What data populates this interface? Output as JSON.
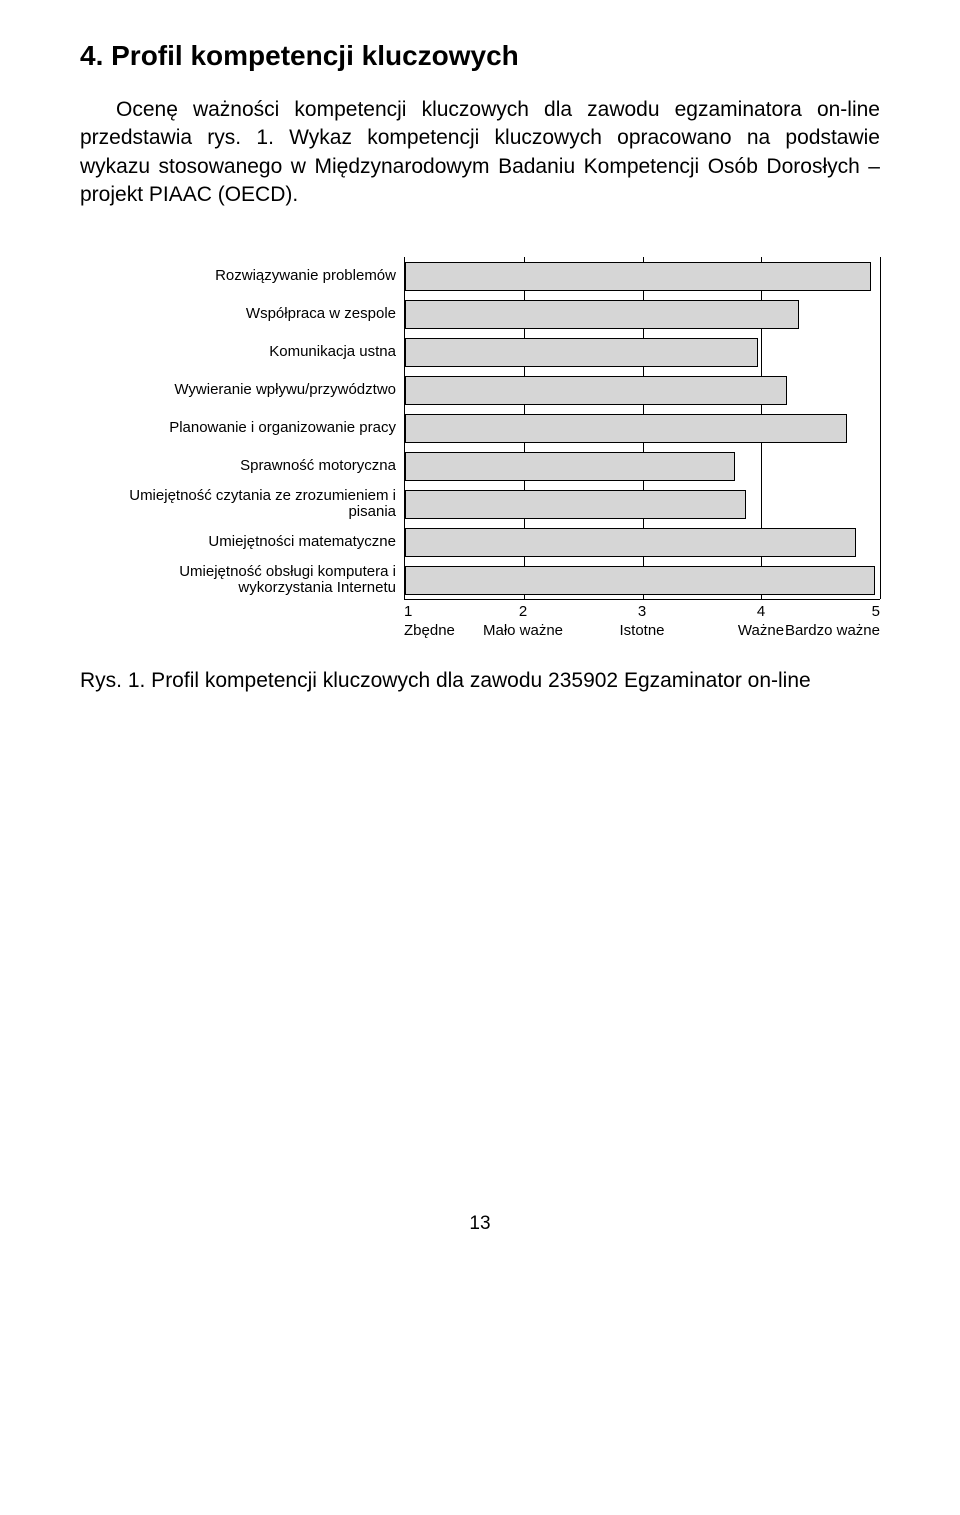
{
  "heading": "4. Profil kompetencji kluczowych",
  "intro": "Ocenę ważności kompetencji kluczowych dla zawodu egzaminatora on-line przedstawia rys. 1. Wykaz kompetencji kluczowych opracowano na podstawie wykazu stosowanego w Międzynarodowym Badaniu Kompetencji Osób Dorosłych – projekt PIAAC (OECD).",
  "chart": {
    "type": "bar-horizontal",
    "xlim": [
      1,
      5
    ],
    "xticks": [
      {
        "value": 1,
        "num": "1",
        "label": "Zbędne"
      },
      {
        "value": 2,
        "num": "2",
        "label": "Mało ważne"
      },
      {
        "value": 3,
        "num": "3",
        "label": "Istotne"
      },
      {
        "value": 4,
        "num": "4",
        "label": "Ważne"
      },
      {
        "value": 5,
        "num": "5",
        "label": "Bardzo ważne"
      }
    ],
    "bar_fill": "#d6d6d6",
    "bar_border": "#000000",
    "grid_color": "#000000",
    "background": "#ffffff",
    "label_fontsize": 15,
    "series": [
      {
        "label": "Rozwiązywanie problemów",
        "value": 4.92
      },
      {
        "label": "Współpraca w zespole",
        "value": 4.32
      },
      {
        "label": "Komunikacja ustna",
        "value": 3.97
      },
      {
        "label": "Wywieranie wpływu/przywództwo",
        "value": 4.22
      },
      {
        "label": "Planowanie i organizowanie pracy",
        "value": 4.72
      },
      {
        "label": "Sprawność motoryczna",
        "value": 3.78
      },
      {
        "label": "Umiejętność czytania ze zrozumieniem i pisania",
        "value": 3.87
      },
      {
        "label": "Umiejętności matematyczne",
        "value": 4.8
      },
      {
        "label": "Umiejętność obsługi komputera i wykorzystania Internetu",
        "value": 4.96
      }
    ]
  },
  "caption": "Rys. 1. Profil kompetencji kluczowych dla zawodu 235902 Egzaminator on-line",
  "page_number": "13"
}
